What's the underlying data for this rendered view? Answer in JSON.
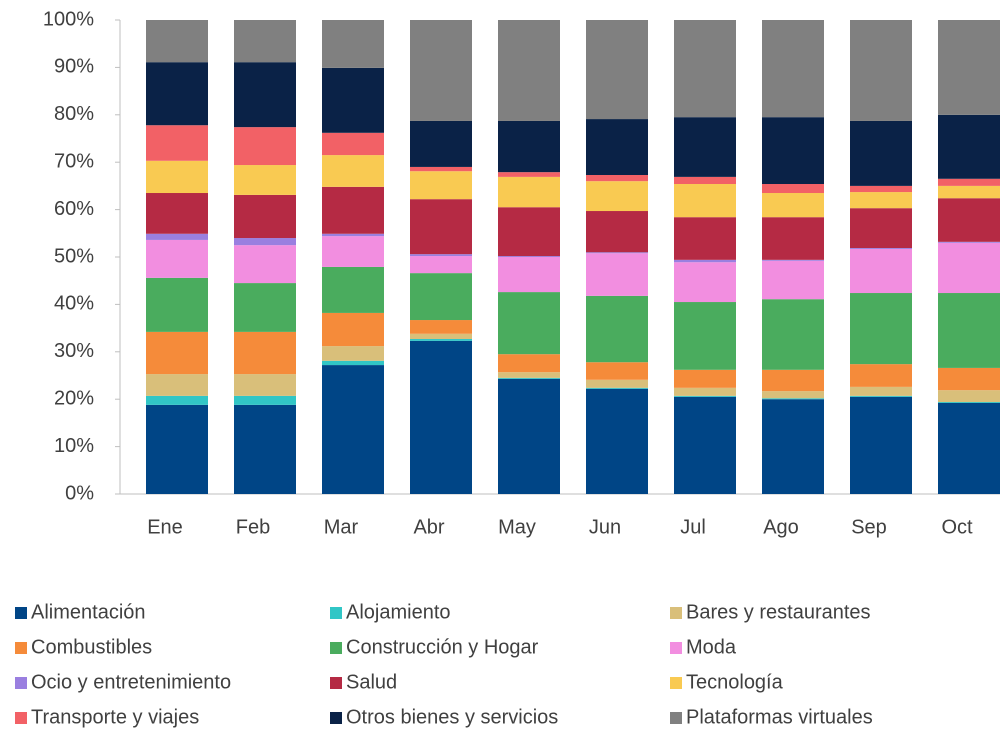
{
  "chart_data": {
    "type": "stacked_bar",
    "categories": [
      "Ene",
      "Feb",
      "Mar",
      "Abr",
      "May",
      "Jun",
      "Jul",
      "Ago",
      "Sep",
      "Oct"
    ],
    "ylim": [
      0,
      100
    ],
    "yticks": [
      {
        "value": 0,
        "label": "0%"
      },
      {
        "value": 10,
        "label": "10%"
      },
      {
        "value": 20,
        "label": "20%"
      },
      {
        "value": 30,
        "label": "30%"
      },
      {
        "value": 40,
        "label": "40%"
      },
      {
        "value": 50,
        "label": "50%"
      },
      {
        "value": 60,
        "label": "60%"
      },
      {
        "value": 70,
        "label": "70%"
      },
      {
        "value": 80,
        "label": "80%"
      },
      {
        "value": 90,
        "label": "90%"
      },
      {
        "value": 100,
        "label": "100%"
      }
    ],
    "series": [
      {
        "name": "Alimentación",
        "color": "#004586",
        "values": [
          18.8,
          18.8,
          27.2,
          32.3,
          24.3,
          22.2,
          20.5,
          20.0,
          20.5,
          19.2
        ]
      },
      {
        "name": "Alojamiento",
        "color": "#31c6c6",
        "values": [
          1.9,
          1.9,
          0.9,
          0.4,
          0.2,
          0.2,
          0.2,
          0.2,
          0.2,
          0.2
        ]
      },
      {
        "name": "Bares y restaurantes",
        "color": "#d9bf7a",
        "values": [
          4.6,
          4.6,
          3.1,
          1.1,
          1.2,
          1.7,
          1.7,
          1.5,
          1.9,
          2.5
        ]
      },
      {
        "name": "Combustibles",
        "color": "#f58b3a",
        "values": [
          8.9,
          8.9,
          7.0,
          2.9,
          3.8,
          3.7,
          3.8,
          4.5,
          4.8,
          4.7
        ]
      },
      {
        "name": "Construcción y Hogar",
        "color": "#4aac5e",
        "values": [
          11.4,
          10.3,
          9.7,
          9.9,
          13.1,
          14.0,
          14.3,
          14.9,
          15.0,
          15.8
        ]
      },
      {
        "name": "Moda",
        "color": "#f28ee0",
        "values": [
          8.0,
          8.0,
          6.5,
          3.6,
          7.4,
          9.0,
          8.4,
          8.1,
          9.3,
          10.6
        ]
      },
      {
        "name": "Ocio y entretenimiento",
        "color": "#9a7fe0",
        "values": [
          1.3,
          1.5,
          0.5,
          0.4,
          0.2,
          0.2,
          0.5,
          0.2,
          0.2,
          0.2
        ]
      },
      {
        "name": "Salud",
        "color": "#b52a44",
        "values": [
          8.6,
          9.1,
          9.9,
          11.6,
          10.3,
          8.7,
          9.0,
          9.0,
          8.4,
          9.2
        ]
      },
      {
        "name": "Tecnología",
        "color": "#f9ca52",
        "values": [
          6.8,
          6.3,
          6.7,
          5.9,
          6.4,
          6.3,
          7.0,
          5.1,
          3.4,
          2.6
        ]
      },
      {
        "name": "Transporte y viajes",
        "color": "#f26166",
        "values": [
          7.5,
          8.0,
          4.7,
          0.9,
          1.0,
          1.3,
          1.5,
          1.9,
          1.3,
          1.5
        ]
      },
      {
        "name": "Otros bienes y servicios",
        "color": "#0a2247",
        "values": [
          13.3,
          13.7,
          13.7,
          9.7,
          10.8,
          11.8,
          12.6,
          14.1,
          13.7,
          13.5
        ]
      },
      {
        "name": "Plataformas virtuales",
        "color": "#808080",
        "values": [
          8.9,
          8.9,
          10.1,
          21.3,
          21.3,
          20.9,
          20.5,
          20.5,
          21.3,
          20.0
        ]
      }
    ]
  }
}
